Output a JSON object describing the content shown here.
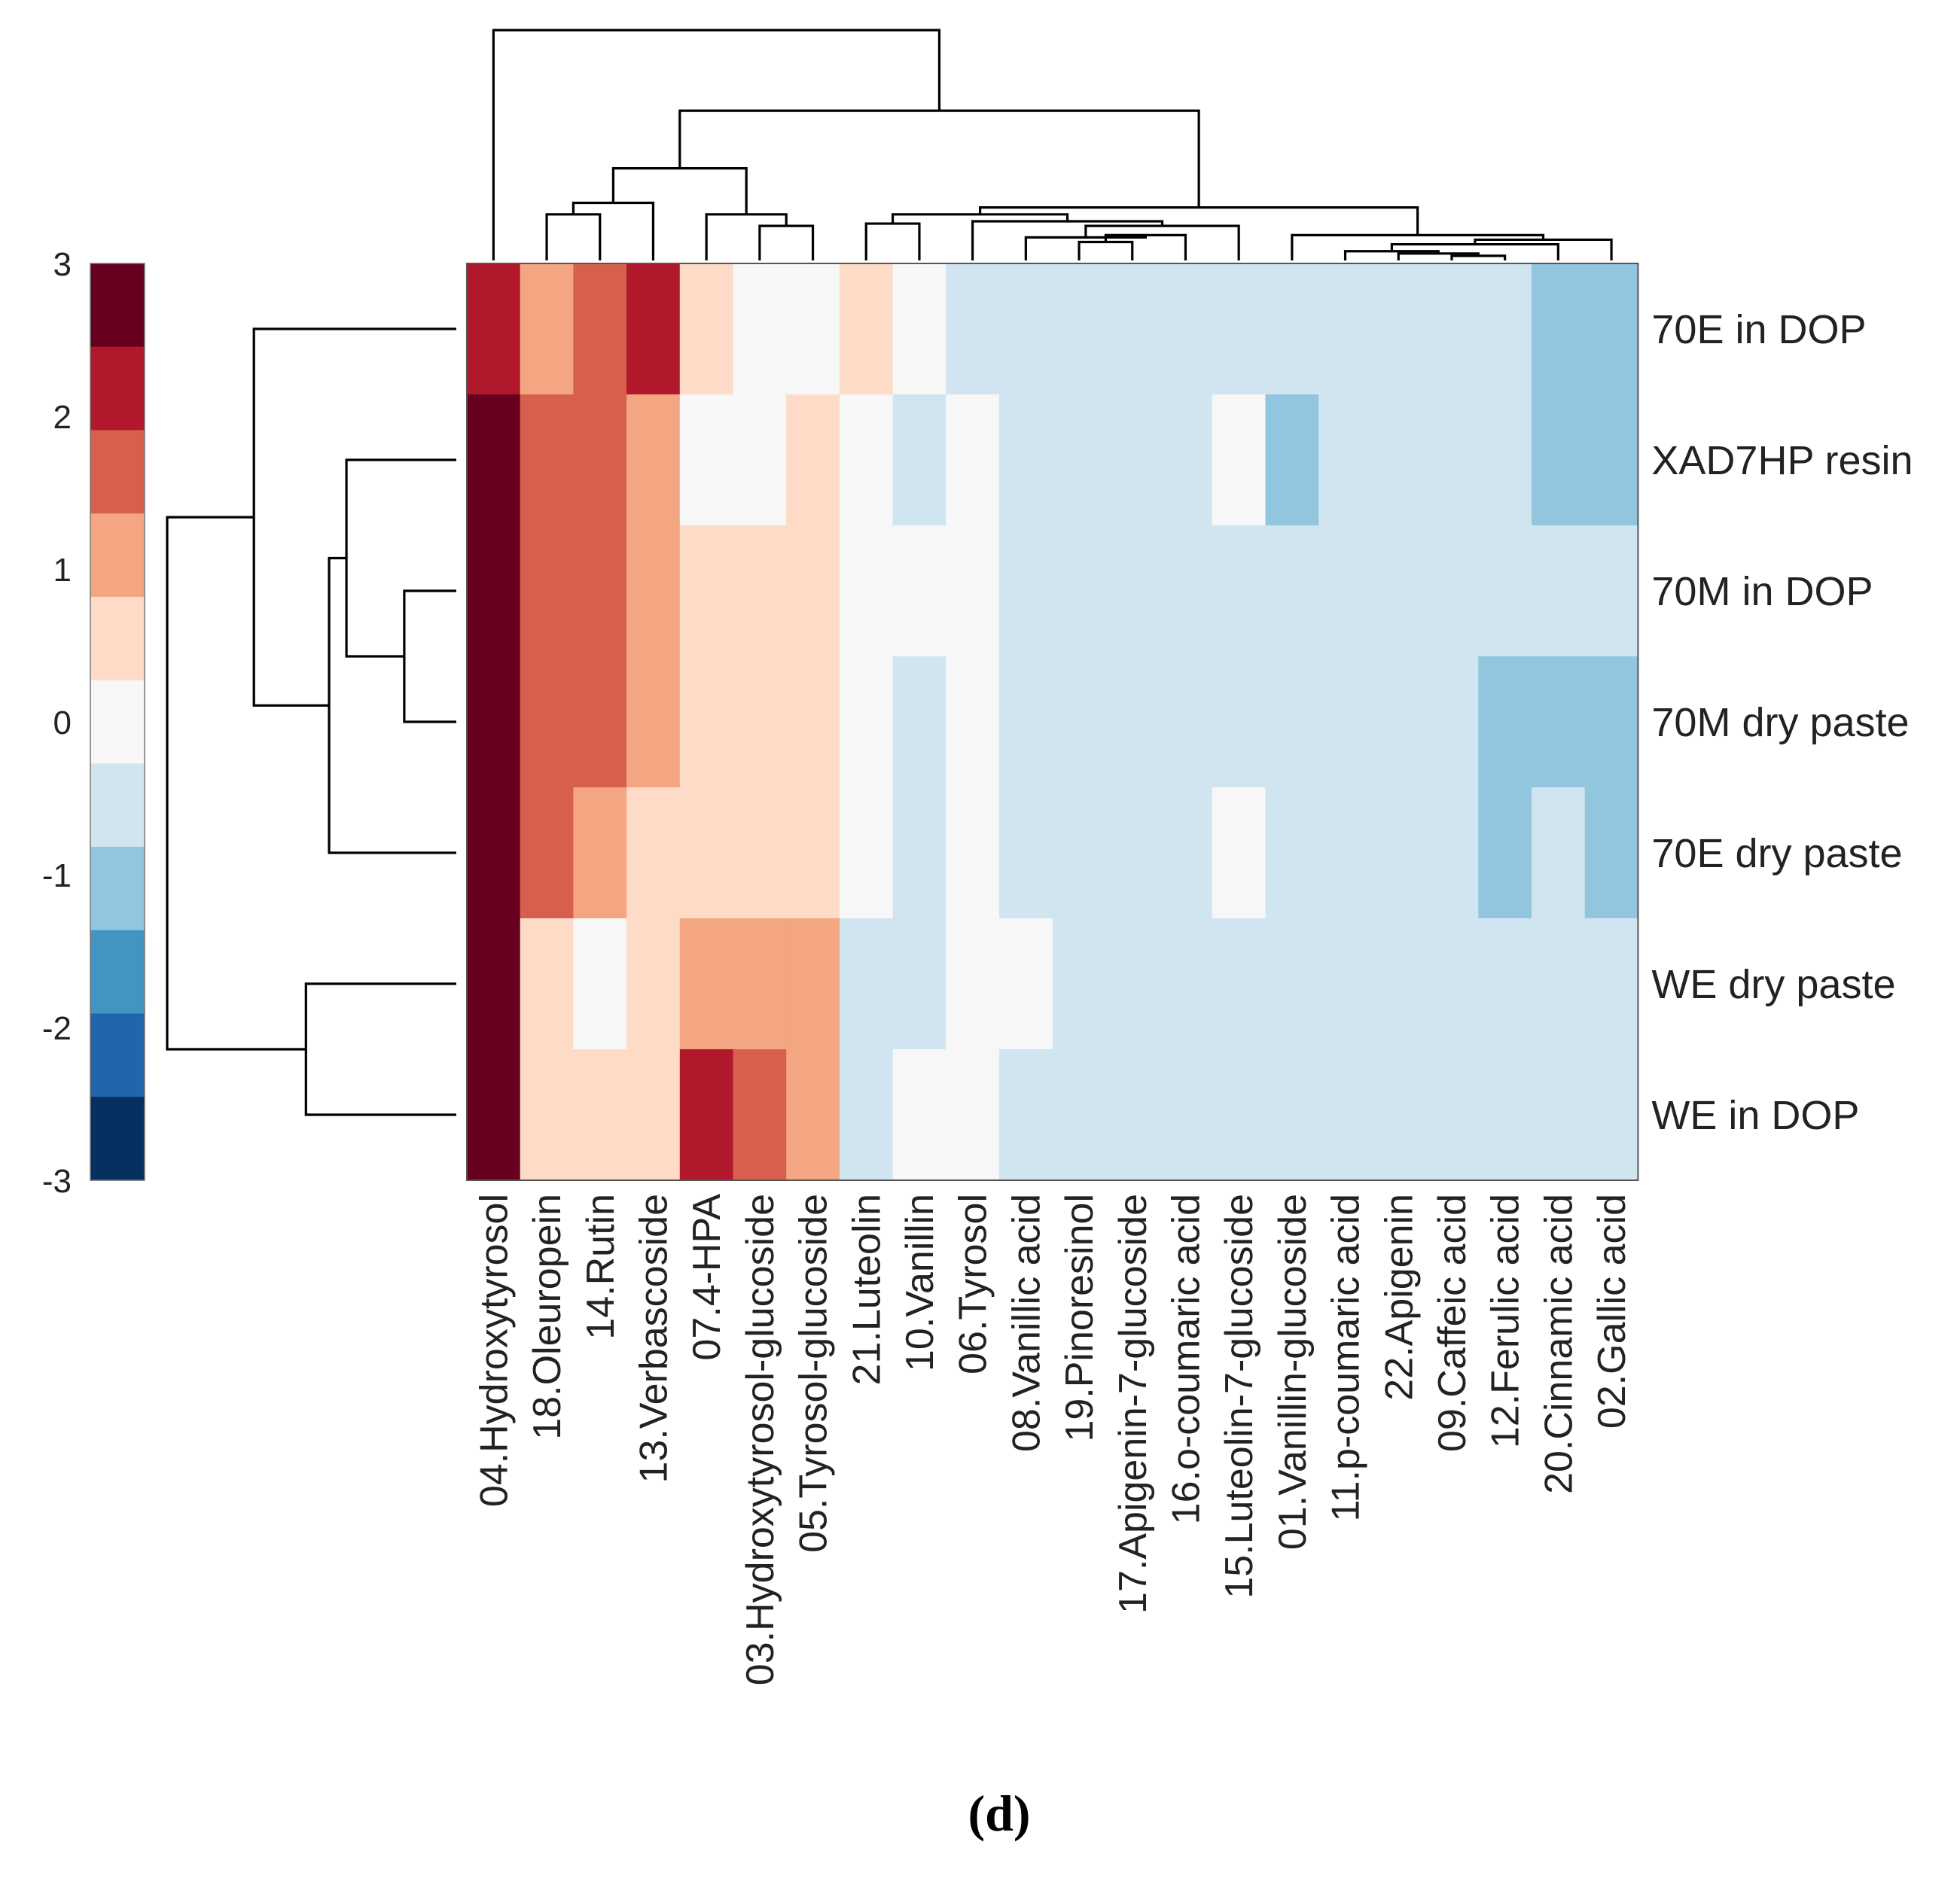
{
  "chart_data": {
    "type": "heatmap",
    "title": "",
    "caption": "(d)",
    "rows": [
      "70E in DOP",
      "XAD7HP resin",
      "70M in DOP",
      "70M dry paste",
      "70E dry paste",
      "WE dry paste",
      "WE in DOP"
    ],
    "columns": [
      "04.Hydroxytyrosol",
      "18.Oleuropein",
      "14.Rutin",
      "13.Verbascoside",
      "07.4-HPA",
      "03.Hydroxytyrosol-glucoside",
      "05.Tyrosol-glucoside",
      "21.Luteolin",
      "10.Vanillin",
      "06.Tyrosol",
      "08.Vanillic acid",
      "19.Pinoresinol",
      "17.Apigenin-7-glucoside",
      "16.o-coumaric acid",
      "15.Luteolin-7-glucoside",
      "01.Vanillin-glucoside",
      "11.p-coumaric acid",
      "22.Apigenin",
      "09.Caffeic acid",
      "12.Ferulic acid",
      "20.Cinnamic acid",
      "02.Gallic acid"
    ],
    "values": [
      [
        2,
        1,
        1.5,
        2,
        0.5,
        0,
        0,
        0.5,
        0,
        -0.5,
        -0.5,
        -0.5,
        -0.5,
        -0.5,
        -0.5,
        -0.5,
        -0.5,
        -0.5,
        -0.5,
        -0.5,
        -1,
        -1
      ],
      [
        3,
        1.5,
        1.5,
        1,
        0,
        0,
        0.5,
        0,
        -0.5,
        0,
        -0.5,
        -0.5,
        -0.5,
        -0.5,
        0,
        -1,
        -0.5,
        -0.5,
        -0.5,
        -0.5,
        -1,
        -1
      ],
      [
        3,
        1.5,
        1.5,
        1,
        0.5,
        0.5,
        0.5,
        0,
        0,
        0,
        -0.5,
        -0.5,
        -0.5,
        -0.5,
        -0.5,
        -0.5,
        -0.5,
        -0.5,
        -0.5,
        -0.5,
        -0.5,
        -0.5
      ],
      [
        3,
        1.5,
        1.5,
        1,
        0.5,
        0.5,
        0.5,
        0,
        -0.5,
        0,
        -0.5,
        -0.5,
        -0.5,
        -0.5,
        -0.5,
        -0.5,
        -0.5,
        -0.5,
        -0.5,
        -1,
        -1,
        -1
      ],
      [
        3,
        1.5,
        1,
        0.5,
        0.5,
        0.5,
        0.5,
        0,
        -0.5,
        0,
        -0.5,
        -0.5,
        -0.5,
        -0.5,
        0,
        -0.5,
        -0.5,
        -0.5,
        -0.5,
        -1,
        -0.5,
        -1
      ],
      [
        3,
        0.5,
        0,
        0.5,
        1,
        1,
        1,
        -0.5,
        -0.5,
        0,
        0,
        -0.5,
        -0.5,
        -0.5,
        -0.5,
        -0.5,
        -0.5,
        -0.5,
        -0.5,
        -0.5,
        -0.5,
        -0.5
      ],
      [
        3,
        0.5,
        0.5,
        0.5,
        2,
        1.5,
        1,
        -0.5,
        0,
        0,
        -0.5,
        -0.5,
        -0.5,
        -0.5,
        -0.5,
        -0.5,
        -0.5,
        -0.5,
        -0.5,
        -0.5,
        -0.5,
        -0.5
      ]
    ],
    "colorbar": {
      "ticks": [
        3,
        2,
        1,
        0,
        -1,
        -2,
        -3
      ],
      "tick_labels": [
        "3",
        "2",
        "1",
        "0",
        "-1",
        "-2",
        "-3"
      ],
      "range": [
        -3,
        3
      ],
      "bins": [
        {
          "value": 2.75,
          "color": "#67001f"
        },
        {
          "value": 2.25,
          "color": "#b2182b"
        },
        {
          "value": 1.75,
          "color": "#d6604d"
        },
        {
          "value": 1.25,
          "color": "#f4a582"
        },
        {
          "value": 0.75,
          "color": "#fddbc7"
        },
        {
          "value": 0.25,
          "color": "#f7f7f7"
        },
        {
          "value": -0.25,
          "color": "#d1e5f0"
        },
        {
          "value": -0.75,
          "color": "#92c5de"
        },
        {
          "value": -1.25,
          "color": "#4393c3"
        },
        {
          "value": -1.75,
          "color": "#2166ac"
        },
        {
          "value": -2.25,
          "color": "#053061"
        }
      ]
    },
    "value_colors": {
      "3": "#67001f",
      "2": "#b2182b",
      "1.5": "#d6604d",
      "1": "#f4a582",
      "0.5": "#fddbc7",
      "0": "#f7f7f7",
      "-0.5": "#d1e5f0",
      "-1": "#92c5de"
    },
    "row_dendrogram": {
      "merges": [
        [
          2,
          3,
          0.18
        ],
        [
          1,
          7,
          0.38
        ],
        [
          4,
          8,
          0.44
        ],
        [
          0,
          9,
          0.7
        ],
        [
          5,
          6,
          0.52
        ],
        [
          10,
          11,
          1.0
        ]
      ]
    },
    "column_dendrogram": {
      "merges": [
        [
          18,
          19,
          0.02
        ],
        [
          17,
          22,
          0.03
        ],
        [
          16,
          23,
          0.04
        ],
        [
          20,
          24,
          0.07
        ],
        [
          21,
          25,
          0.09
        ],
        [
          15,
          26,
          0.11
        ],
        [
          11,
          12,
          0.08
        ],
        [
          13,
          28,
          0.11
        ],
        [
          10,
          29,
          0.1
        ],
        [
          14,
          30,
          0.15
        ],
        [
          9,
          31,
          0.17
        ],
        [
          7,
          8,
          0.16
        ],
        [
          32,
          33,
          0.2
        ],
        [
          27,
          34,
          0.23
        ],
        [
          5,
          6,
          0.15
        ],
        [
          4,
          36,
          0.2
        ],
        [
          1,
          2,
          0.2
        ],
        [
          38,
          3,
          0.25
        ],
        [
          39,
          37,
          0.4
        ],
        [
          40,
          35,
          0.65
        ],
        [
          0,
          41,
          1.0
        ]
      ]
    }
  }
}
